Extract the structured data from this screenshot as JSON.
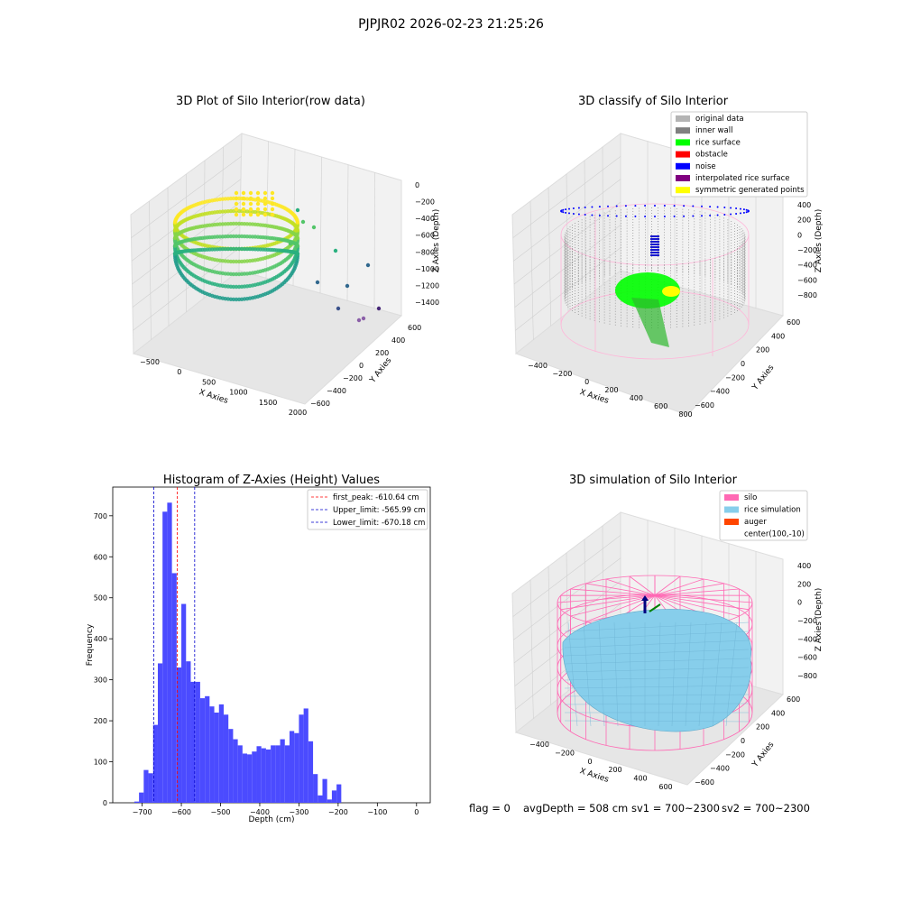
{
  "suptitle": "PJPJR02 2026-02-23 21:25:26",
  "status_line": {
    "flag": "flag = 0",
    "avg_depth": "avgDepth = 508 cm",
    "sv1": "sv1 = 700~2300",
    "sv2": "sv2 = 700~2300"
  },
  "colors": {
    "hist_bar": "#4b4bff",
    "first_peak": "#ff0000",
    "limits": "#0000cc",
    "pane_face": "#f2f2f2",
    "silo_wire": "#ff69b4",
    "rice_sim": "#87ceeb",
    "auger": "#ff4500",
    "viridis_low": "#35608d",
    "viridis_mid": "#21a585",
    "viridis_high": "#fde725"
  },
  "chart_data": [
    {
      "type": "scatter3d",
      "title": "3D Plot of Silo Interior(row data)",
      "xlabel": "X Axies",
      "ylabel": "Y Axies",
      "zlabel": "Z Axies (Depth)",
      "x_ticks": [
        "−500",
        "0",
        "500",
        "1000",
        "1500",
        "2000"
      ],
      "y_ticks": [
        "600",
        "400",
        "200",
        "0",
        "−200",
        "−400",
        "−600"
      ],
      "z_ticks": [
        "0",
        "−200",
        "−400",
        "−600",
        "−800",
        "−1000",
        "−1200",
        "−1400"
      ],
      "colormap": "viridis"
    },
    {
      "type": "scatter3d",
      "title": "3D classify of Silo Interior",
      "xlabel": "X Axies",
      "ylabel": "Y Axies",
      "zlabel": "Z Axies (Depth)",
      "x_ticks": [
        "−400",
        "−200",
        "0",
        "200",
        "400",
        "600",
        "800"
      ],
      "y_ticks": [
        "600",
        "400",
        "200",
        "0",
        "−200",
        "−400",
        "−600"
      ],
      "z_ticks": [
        "400",
        "200",
        "0",
        "−200",
        "−400",
        "−600",
        "−800"
      ],
      "legend": [
        {
          "label": "original data",
          "color": "#b4b4b4"
        },
        {
          "label": "inner wall",
          "color": "#808080"
        },
        {
          "label": "rice surface",
          "color": "#00ff00"
        },
        {
          "label": "obstacle",
          "color": "#ff0000"
        },
        {
          "label": "noise",
          "color": "#0000ff"
        },
        {
          "label": "interpolated rice surface",
          "color": "#800080"
        },
        {
          "label": "symmetric generated points",
          "color": "#ffff00"
        }
      ]
    },
    {
      "type": "bar",
      "title": "Histogram of Z-Axies (Height) Values",
      "xlabel": "Depth (cm)",
      "ylabel": "Frequency",
      "xlim": [
        -775,
        35
      ],
      "ylim": [
        0,
        770
      ],
      "x_ticks": [
        -700,
        -600,
        -500,
        -400,
        -300,
        -200,
        -100,
        0
      ],
      "x_tick_labels": [
        "−700",
        "−600",
        "−500",
        "−400",
        "−300",
        "−200",
        "−100",
        "0"
      ],
      "y_ticks": [
        0,
        100,
        200,
        300,
        400,
        500,
        600,
        700
      ],
      "bin_start": -720,
      "bin_width": 12,
      "values": [
        3,
        25,
        80,
        72,
        190,
        340,
        710,
        732,
        560,
        330,
        485,
        345,
        295,
        295,
        255,
        260,
        235,
        220,
        240,
        215,
        180,
        155,
        140,
        120,
        118,
        125,
        138,
        133,
        130,
        140,
        140,
        155,
        140,
        175,
        170,
        215,
        230,
        150,
        70,
        18,
        58,
        8,
        30,
        45
      ],
      "lines": [
        {
          "label": "first_peak: -610.64 cm",
          "x": -610.64,
          "color": "#ff0000"
        },
        {
          "label": "Upper_limit: -565.99 cm",
          "x": -565.99,
          "color": "#0000cc"
        },
        {
          "label": "Lower_limit: -670.18 cm",
          "x": -670.18,
          "color": "#0000cc"
        }
      ]
    },
    {
      "type": "surface3d",
      "title": "3D simulation of Silo Interior",
      "xlabel": "X Axies",
      "ylabel": "Y Axies",
      "zlabel": "Z Axies (Depth)",
      "x_ticks": [
        "−400",
        "−200",
        "0",
        "200",
        "400",
        "600"
      ],
      "y_ticks": [
        "600",
        "400",
        "200",
        "0",
        "−200",
        "−400",
        "−600"
      ],
      "z_ticks": [
        "400",
        "200",
        "0",
        "−200",
        "−400",
        "−600",
        "−800"
      ],
      "legend": [
        {
          "label": "silo",
          "color": "#ff69b4"
        },
        {
          "label": "rice simulation",
          "color": "#87ceeb"
        },
        {
          "label": "auger",
          "color": "#ff4500"
        },
        {
          "label": "center(100,-10)",
          "color": "none"
        }
      ]
    }
  ]
}
